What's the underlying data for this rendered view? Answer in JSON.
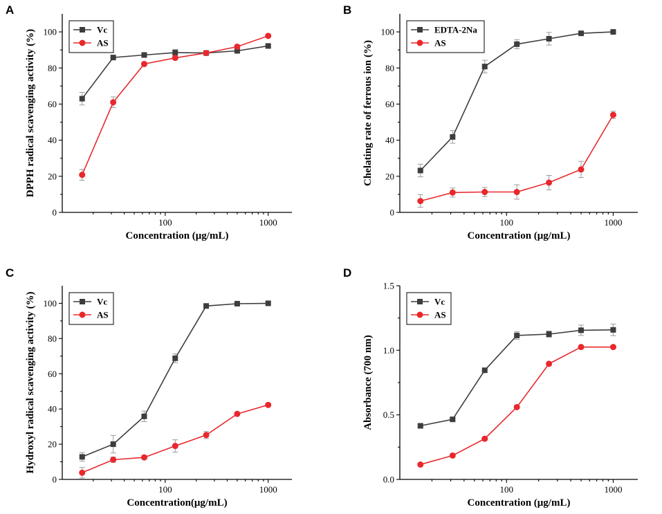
{
  "chart_data": [
    {
      "panel": "A",
      "type": "line",
      "xlabel": "Concentration (μg/mL)",
      "ylabel": "DPPH radical scavenging activity (%)",
      "xscale": "log",
      "xlim": [
        10,
        1700
      ],
      "ylim": [
        0,
        110
      ],
      "xticks": [
        100,
        1000
      ],
      "xtick_labels": [
        "100",
        "1000"
      ],
      "yticks": [
        0,
        20,
        40,
        60,
        80,
        100
      ],
      "ytick_labels": [
        "0",
        "20",
        "40",
        "60",
        "80",
        "100"
      ],
      "legend_position": "top-left",
      "series": [
        {
          "name": "Vc",
          "color": "#3d3d3d",
          "marker": "square",
          "x": [
            15.6,
            31.25,
            62.5,
            125,
            250,
            500,
            1000
          ],
          "values": [
            63.0,
            85.8,
            87.2,
            88.5,
            88.3,
            89.5,
            92.2
          ],
          "errors": [
            3.5,
            1.2,
            1.2,
            1.8,
            1.0,
            1.2,
            0.8
          ]
        },
        {
          "name": "AS",
          "color": "#e8282d",
          "marker": "circle",
          "x": [
            15.6,
            31.25,
            62.5,
            125,
            250,
            500,
            1000
          ],
          "values": [
            20.8,
            61.0,
            82.2,
            85.6,
            88.3,
            91.8,
            97.8
          ],
          "errors": [
            3.0,
            3.0,
            1.0,
            1.0,
            1.0,
            0.8,
            0.8
          ]
        }
      ]
    },
    {
      "panel": "B",
      "type": "line",
      "xlabel": "Concentration (μg/mL)",
      "ylabel": "Chelating rate of ferrous ion (%)",
      "xscale": "log",
      "xlim": [
        10,
        1700
      ],
      "ylim": [
        0,
        110
      ],
      "xticks": [
        100,
        1000
      ],
      "xtick_labels": [
        "100",
        "1000"
      ],
      "yticks": [
        0,
        20,
        40,
        60,
        80,
        100
      ],
      "ytick_labels": [
        "0",
        "20",
        "40",
        "60",
        "80",
        "100"
      ],
      "legend_position": "top-left",
      "series": [
        {
          "name": "EDTA-2Na",
          "color": "#3d3d3d",
          "marker": "square",
          "x": [
            15.6,
            31.25,
            62.5,
            125,
            250,
            500,
            1000
          ],
          "values": [
            23.2,
            41.8,
            80.8,
            93.2,
            96.2,
            99.2,
            100.0
          ],
          "errors": [
            3.5,
            3.5,
            3.5,
            2.5,
            3.5,
            1.0,
            0.8
          ]
        },
        {
          "name": "AS",
          "color": "#e8282d",
          "marker": "circle",
          "x": [
            15.6,
            31.25,
            62.5,
            125,
            250,
            500,
            1000
          ],
          "values": [
            6.3,
            11.0,
            11.3,
            11.3,
            16.5,
            23.8,
            54.0
          ],
          "errors": [
            3.5,
            2.5,
            2.5,
            4.0,
            4.0,
            4.5,
            2.0
          ]
        }
      ]
    },
    {
      "panel": "C",
      "type": "line",
      "xlabel": "Concentration(μg/mL)",
      "ylabel": "Hydroxyl radical scavenging activity (%)",
      "xscale": "log",
      "xlim": [
        10,
        1700
      ],
      "ylim": [
        0,
        110
      ],
      "xticks": [
        100,
        1000
      ],
      "xtick_labels": [
        "100",
        "1000"
      ],
      "yticks": [
        0,
        20,
        40,
        60,
        80,
        100
      ],
      "ytick_labels": [
        "0",
        "20",
        "40",
        "60",
        "80",
        "100"
      ],
      "legend_position": "top-left",
      "series": [
        {
          "name": "Vc",
          "color": "#3d3d3d",
          "marker": "square",
          "x": [
            15.6,
            31.25,
            62.5,
            125,
            250,
            500,
            1000
          ],
          "values": [
            12.8,
            20.0,
            35.8,
            68.8,
            98.5,
            99.8,
            100.0
          ],
          "errors": [
            2.5,
            5.0,
            3.0,
            2.5,
            0.8,
            0.6,
            0.6
          ]
        },
        {
          "name": "AS",
          "color": "#e8282d",
          "marker": "circle",
          "x": [
            15.6,
            31.25,
            62.5,
            125,
            250,
            500,
            1000
          ],
          "values": [
            3.8,
            11.2,
            12.5,
            19.0,
            25.2,
            37.2,
            42.3
          ],
          "errors": [
            3.0,
            1.5,
            1.0,
            3.5,
            2.0,
            0.8,
            0.8
          ]
        }
      ]
    },
    {
      "panel": "D",
      "type": "line",
      "xlabel": "Concentration (μg/mL)",
      "ylabel": "Absorbance (700 nm)",
      "xscale": "log",
      "xlim": [
        10,
        1700
      ],
      "ylim": [
        0,
        1.5
      ],
      "xticks": [
        100,
        1000
      ],
      "xtick_labels": [
        "100",
        "1000"
      ],
      "yticks": [
        0,
        0.5,
        1.0,
        1.5
      ],
      "ytick_labels": [
        "0.0",
        "0.5",
        "1.0",
        "1.5"
      ],
      "legend_position": "top-left",
      "series": [
        {
          "name": "Vc",
          "color": "#3d3d3d",
          "marker": "square",
          "x": [
            15.6,
            31.25,
            62.5,
            125,
            250,
            500,
            1000
          ],
          "values": [
            0.415,
            0.465,
            0.845,
            1.115,
            1.125,
            1.155,
            1.158
          ],
          "errors": [
            0.01,
            0.01,
            0.01,
            0.03,
            0.025,
            0.04,
            0.045
          ]
        },
        {
          "name": "AS",
          "color": "#e8282d",
          "marker": "circle",
          "x": [
            15.6,
            31.25,
            62.5,
            125,
            250,
            500,
            1000
          ],
          "values": [
            0.115,
            0.185,
            0.315,
            0.56,
            0.895,
            1.025,
            1.025
          ],
          "errors": [
            0.008,
            0.008,
            0.008,
            0.01,
            0.01,
            0.01,
            0.008
          ]
        }
      ]
    }
  ]
}
